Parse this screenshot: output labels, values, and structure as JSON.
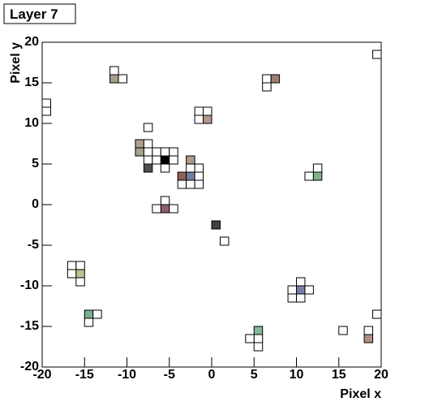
{
  "chart_data": {
    "type": "pixel-map",
    "title": "Layer 7",
    "xlabel": "Pixel x",
    "ylabel": "Pixel y",
    "xlim": [
      -20,
      20
    ],
    "ylim": [
      -20,
      20
    ],
    "xticks": [
      -20,
      -15,
      -10,
      -5,
      0,
      5,
      10,
      15,
      20
    ],
    "yticks": [
      -20,
      -15,
      -10,
      -5,
      0,
      5,
      10,
      15,
      20
    ],
    "cells": {
      "x": [
        19,
        -20,
        -20,
        -12,
        -12,
        -11,
        6,
        7,
        6,
        -2,
        -1,
        -2,
        -1,
        -8,
        -9,
        -8,
        -9,
        -8,
        -7,
        -6,
        -5,
        -8,
        -7,
        -6,
        -5,
        -8,
        -6,
        -3,
        -3,
        -2,
        -4,
        -3,
        -2,
        -4,
        -3,
        -2,
        -6,
        -6,
        -7,
        -5,
        0,
        1,
        12,
        11,
        12,
        -17,
        -16,
        -17,
        -16,
        -16,
        10,
        10,
        9,
        11,
        10,
        9,
        -15,
        -14,
        -15,
        5,
        4,
        5,
        5,
        15,
        19,
        18,
        18
      ],
      "y": [
        18,
        11,
        12,
        15,
        16,
        15,
        15,
        15,
        14,
        11,
        11,
        10,
        10,
        9,
        7,
        7,
        6,
        6,
        6,
        6,
        6,
        5,
        5,
        5,
        5,
        4,
        4,
        5,
        4,
        4,
        3,
        3,
        3,
        2,
        2,
        2,
        -1,
        0,
        -1,
        -1,
        -3,
        -5,
        4,
        3,
        3,
        -8,
        -8,
        -9,
        -9,
        -10,
        -11,
        -10,
        -11,
        -11,
        -12,
        -12,
        -14,
        -14,
        -15,
        -17,
        -17,
        -16,
        -18,
        -16,
        -14,
        -16,
        -17
      ],
      "colors": [
        "#ffffff",
        "#ffffff",
        "#ffffff",
        "#a89c8c",
        "#ffffff",
        "#ffffff",
        "#ffffff",
        "#a07c70",
        "#ffffff",
        "#ffffff",
        "#ffffff",
        "#ffffff",
        "#b0988c",
        "#ffffff",
        "#b0a090",
        "#ffffff",
        "#a8a090",
        "#ffffff",
        "#ffffff",
        "#ffffff",
        "#ffffff",
        "#ffffff",
        "#ffffff",
        "#000000",
        "#ffffff",
        "#505050",
        "#ffffff",
        "#b09a8a",
        "#ffffff",
        "#ffffff",
        "#906058",
        "#7080a0",
        "#ffffff",
        "#ffffff",
        "#ffffff",
        "#ffffff",
        "#906070",
        "#ffffff",
        "#ffffff",
        "#ffffff",
        "#404040",
        "#ffffff",
        "#ffffff",
        "#ffffff",
        "#80b090",
        "#ffffff",
        "#ffffff",
        "#ffffff",
        "#c0c090",
        "#ffffff",
        "#7c80a8",
        "#ffffff",
        "#ffffff",
        "#ffffff",
        "#ffffff",
        "#ffffff",
        "#78b090",
        "#ffffff",
        "#ffffff",
        "#ffffff",
        "#ffffff",
        "#88b898",
        "#ffffff",
        "#ffffff",
        "#ffffff",
        "#ffffff",
        "#b09080"
      ]
    }
  }
}
